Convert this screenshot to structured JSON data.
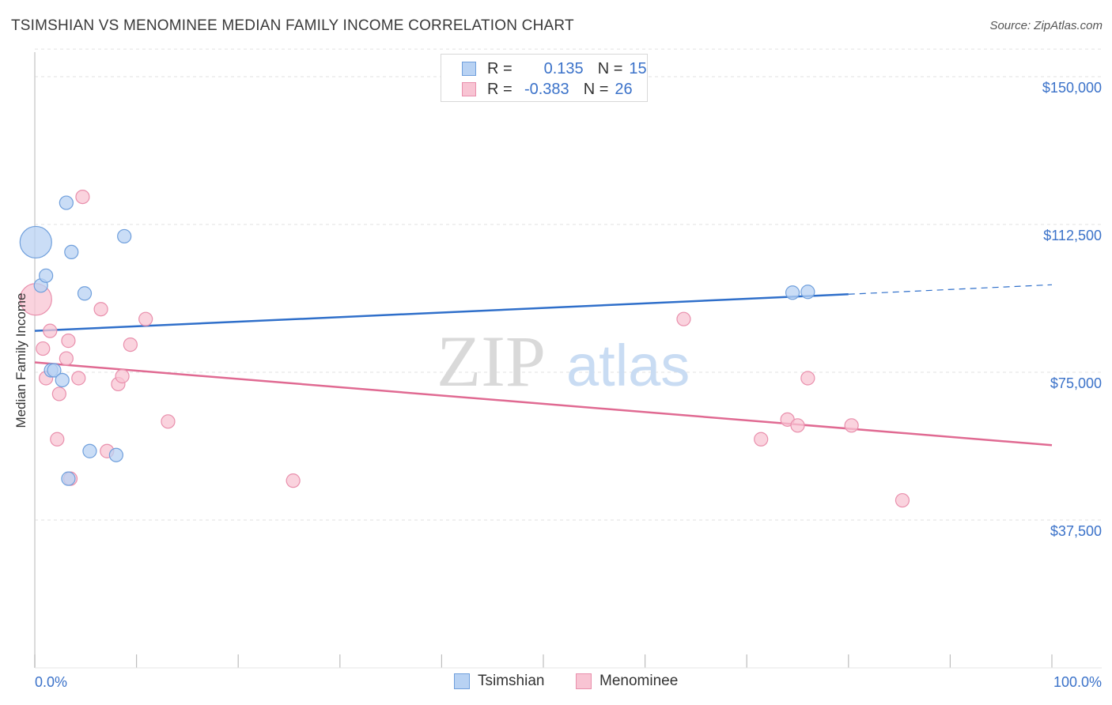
{
  "header": {
    "title": "TSIMSHIAN VS MENOMINEE MEDIAN FAMILY INCOME CORRELATION CHART",
    "source": "Source: ZipAtlas.com"
  },
  "watermark": {
    "zip": "ZIP",
    "atlas": "atlas"
  },
  "legend_top": {
    "rows": [
      {
        "r_label": "R =",
        "r_value": "0.135",
        "n_label": "N =",
        "n_value": "15"
      },
      {
        "r_label": "R =",
        "r_value": "-0.383",
        "n_label": "N =",
        "n_value": "26"
      }
    ]
  },
  "colors": {
    "tsimshian_fill": "#b8d2f3",
    "tsimshian_stroke": "#6f9fdc",
    "tsimshian_line": "#2f6fca",
    "menominee_fill": "#f8c4d3",
    "menominee_stroke": "#e98fac",
    "menominee_line": "#e06a92",
    "axis_label": "#3b72c9",
    "grid": "#e2e2e2"
  },
  "chart_data": {
    "type": "scatter",
    "title": "TSIMSHIAN VS MENOMINEE MEDIAN FAMILY INCOME CORRELATION CHART",
    "xlabel": "",
    "ylabel": "Median Family Income",
    "xlim": [
      0,
      100
    ],
    "ylim": [
      0,
      157000
    ],
    "x_tick_labels": [
      "0.0%",
      "100.0%"
    ],
    "y_ticks": [
      37500,
      75000,
      112500,
      150000
    ],
    "y_tick_labels": [
      "$37,500",
      "$75,000",
      "$112,500",
      "$150,000"
    ],
    "grid": true,
    "legend": "bottom",
    "series": [
      {
        "name": "Tsimshian",
        "points": [
          {
            "x": 0.1,
            "y": 108000,
            "big": true
          },
          {
            "x": 0.6,
            "y": 97000
          },
          {
            "x": 1.1,
            "y": 99500
          },
          {
            "x": 3.1,
            "y": 118000
          },
          {
            "x": 3.6,
            "y": 105500
          },
          {
            "x": 8.8,
            "y": 109500
          },
          {
            "x": 4.9,
            "y": 95000
          },
          {
            "x": 1.6,
            "y": 75500
          },
          {
            "x": 1.9,
            "y": 75500
          },
          {
            "x": 2.7,
            "y": 73000
          },
          {
            "x": 5.4,
            "y": 55000
          },
          {
            "x": 8.0,
            "y": 54000
          },
          {
            "x": 3.3,
            "y": 48000
          },
          {
            "x": 74.5,
            "y": 95200
          },
          {
            "x": 76.0,
            "y": 95400
          }
        ],
        "trend": {
          "x1": 0,
          "y1": 85500,
          "x2": 80,
          "y2": 94800,
          "x_dash_end": 100,
          "y_dash_end": 97200
        }
      },
      {
        "name": "Menominee",
        "points": [
          {
            "x": 0.1,
            "y": 93500,
            "big": true
          },
          {
            "x": 0.8,
            "y": 81000
          },
          {
            "x": 1.1,
            "y": 73500
          },
          {
            "x": 1.5,
            "y": 85500
          },
          {
            "x": 2.2,
            "y": 58000
          },
          {
            "x": 2.4,
            "y": 69500
          },
          {
            "x": 3.1,
            "y": 78500
          },
          {
            "x": 3.3,
            "y": 83000
          },
          {
            "x": 3.5,
            "y": 48000
          },
          {
            "x": 4.3,
            "y": 73500
          },
          {
            "x": 4.7,
            "y": 119500
          },
          {
            "x": 6.5,
            "y": 91000
          },
          {
            "x": 7.1,
            "y": 55000
          },
          {
            "x": 8.2,
            "y": 72000
          },
          {
            "x": 8.6,
            "y": 74000
          },
          {
            "x": 9.4,
            "y": 82000
          },
          {
            "x": 10.9,
            "y": 88500
          },
          {
            "x": 13.1,
            "y": 62500
          },
          {
            "x": 25.4,
            "y": 47500
          },
          {
            "x": 63.8,
            "y": 88500
          },
          {
            "x": 71.4,
            "y": 58000
          },
          {
            "x": 74.0,
            "y": 63000
          },
          {
            "x": 75.0,
            "y": 61500
          },
          {
            "x": 76.0,
            "y": 73500
          },
          {
            "x": 80.3,
            "y": 61500
          },
          {
            "x": 85.3,
            "y": 42500
          }
        ],
        "trend": {
          "x1": 0,
          "y1": 77500,
          "x2": 100,
          "y2": 56500
        }
      }
    ]
  }
}
